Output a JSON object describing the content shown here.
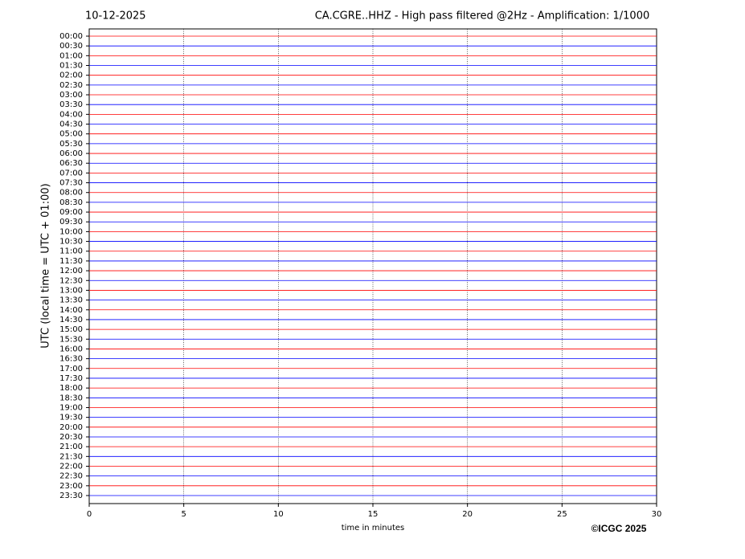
{
  "chart_data": {
    "type": "helicorder",
    "date": "10-12-2025",
    "title": "CA.CGRE..HHZ - High pass filtered @2Hz - Amplification: 1/1000",
    "y_label": "UTC (local time = UTC + 01:00)",
    "x_label": "time in minutes",
    "copyright": "©ICGC 2025",
    "categories": [
      "00:00",
      "00:30",
      "01:00",
      "01:30",
      "02:00",
      "02:30",
      "03:00",
      "03:30",
      "04:00",
      "04:30",
      "05:00",
      "05:30",
      "06:00",
      "06:30",
      "07:00",
      "07:30",
      "08:00",
      "08:30",
      "09:00",
      "09:30",
      "10:00",
      "10:30",
      "11:00",
      "11:30",
      "12:00",
      "12:30",
      "13:00",
      "13:30",
      "14:00",
      "14:30",
      "15:00",
      "15:30",
      "16:00",
      "16:30",
      "17:00",
      "17:30",
      "18:00",
      "18:30",
      "19:00",
      "19:30",
      "20:00",
      "20:30",
      "21:00",
      "21:30",
      "22:00",
      "22:30",
      "23:00",
      "23:30"
    ],
    "trace_colors": [
      "#ff0000",
      "#0000ff"
    ],
    "xlim": [
      0,
      30
    ],
    "xticks": [
      0,
      5,
      10,
      15,
      20,
      25,
      30
    ],
    "grid": true
  }
}
